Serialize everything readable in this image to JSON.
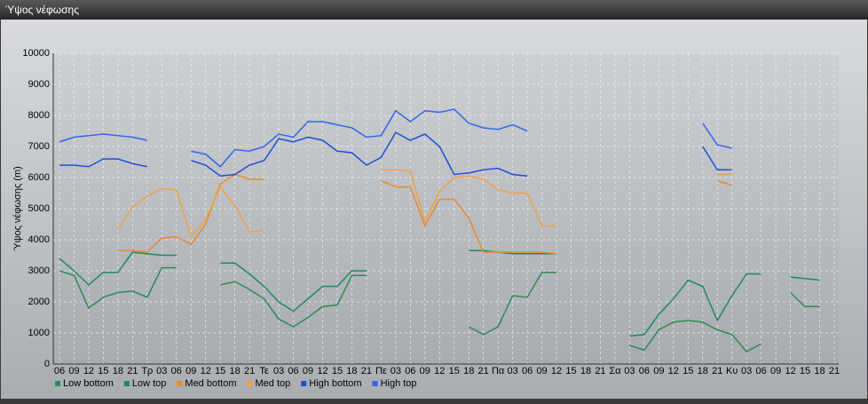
{
  "chart_data": {
    "type": "line",
    "title": "Ύψος νέφωσης",
    "y_label": "Ύψος νέφωσης (m)",
    "categories": [
      "06",
      "09",
      "12",
      "15",
      "18",
      "21",
      "Τρ",
      "03",
      "06",
      "09",
      "12",
      "15",
      "18",
      "21",
      "Τε",
      "03",
      "06",
      "09",
      "12",
      "15",
      "18",
      "21",
      "Πε",
      "03",
      "06",
      "09",
      "12",
      "15",
      "18",
      "21",
      "Πα",
      "03",
      "06",
      "09",
      "12",
      "15",
      "18",
      "21",
      "Σα",
      "03",
      "06",
      "09",
      "12",
      "15",
      "18",
      "21",
      "Κυ",
      "03",
      "06",
      "09",
      "12",
      "15",
      "18",
      "21"
    ],
    "ylim": [
      0,
      10000
    ],
    "yticks": [
      0,
      1000,
      2000,
      3000,
      4000,
      5000,
      6000,
      7000,
      8000,
      9000,
      10000
    ],
    "grid": true,
    "legend": "bottom-left",
    "series": [
      {
        "name": "Low bottom",
        "color": "#2c8c50",
        "values": [
          3000,
          2850,
          1800,
          2150,
          2300,
          2350,
          2150,
          3100,
          3100,
          null,
          null,
          2550,
          2650,
          2400,
          2100,
          1450,
          1200,
          1500,
          1850,
          1900,
          2850,
          2850,
          null,
          null,
          null,
          null,
          null,
          null,
          1200,
          950,
          1200,
          2200,
          2150,
          2950,
          2950,
          null,
          null,
          null,
          null,
          600,
          450,
          1100,
          1350,
          1400,
          1350,
          1100,
          950,
          400,
          650,
          null,
          2300,
          1850,
          1850,
          null
        ]
      },
      {
        "name": "Low top",
        "color": "#1e8a5e",
        "values": [
          3400,
          3000,
          2550,
          2950,
          2950,
          3600,
          3550,
          3500,
          3500,
          null,
          null,
          3250,
          3250,
          2900,
          2500,
          2000,
          1700,
          2100,
          2500,
          2500,
          3000,
          3000,
          null,
          null,
          null,
          null,
          null,
          null,
          3650,
          3650,
          3600,
          3550,
          3550,
          3550,
          3550,
          null,
          null,
          null,
          null,
          900,
          950,
          1600,
          2100,
          2700,
          2500,
          1400,
          2200,
          2900,
          2900,
          null,
          2800,
          2750,
          2700,
          null
        ]
      },
      {
        "name": "Med bottom",
        "color": "#e88a2a",
        "values": [
          null,
          null,
          null,
          null,
          3650,
          3650,
          3600,
          4050,
          4100,
          3850,
          4500,
          5800,
          6100,
          5950,
          5950,
          null,
          null,
          null,
          null,
          null,
          null,
          null,
          5900,
          5700,
          5700,
          4450,
          5300,
          5300,
          4700,
          3600,
          3600,
          3600,
          3600,
          3600,
          3550,
          null,
          null,
          null,
          null,
          null,
          null,
          null,
          null,
          null,
          null,
          5900,
          5750,
          null,
          null,
          null,
          null,
          null,
          null,
          null
        ]
      },
      {
        "name": "Med top",
        "color": "#f0a048",
        "values": [
          null,
          null,
          null,
          null,
          4350,
          5050,
          5400,
          5650,
          5600,
          4100,
          4650,
          5700,
          5100,
          4250,
          4300,
          null,
          null,
          null,
          null,
          null,
          null,
          null,
          6250,
          6250,
          6200,
          4600,
          5550,
          6000,
          6050,
          5950,
          5600,
          5500,
          5500,
          4450,
          4450,
          null,
          null,
          null,
          null,
          null,
          null,
          null,
          null,
          null,
          null,
          6100,
          6100,
          null,
          null,
          null,
          null,
          null,
          null,
          null
        ]
      },
      {
        "name": "High bottom",
        "color": "#1f4fd6",
        "values": [
          6400,
          6400,
          6350,
          6600,
          6600,
          6450,
          6350,
          null,
          null,
          6550,
          6400,
          6050,
          6100,
          6400,
          6550,
          7250,
          7150,
          7300,
          7200,
          6850,
          6800,
          6400,
          6650,
          7450,
          7200,
          7400,
          7000,
          6100,
          6150,
          6250,
          6300,
          6100,
          6050,
          null,
          null,
          null,
          null,
          null,
          null,
          null,
          null,
          null,
          null,
          null,
          7000,
          6250,
          6250,
          null,
          null,
          null,
          null,
          null,
          null,
          null
        ]
      },
      {
        "name": "High top",
        "color": "#3366e8",
        "values": [
          7150,
          7300,
          7350,
          7400,
          7350,
          7300,
          7200,
          null,
          null,
          6850,
          6750,
          6350,
          6900,
          6850,
          7000,
          7400,
          7300,
          7800,
          7800,
          7700,
          7600,
          7300,
          7350,
          8150,
          7800,
          8150,
          8100,
          8200,
          7750,
          7600,
          7550,
          7700,
          7500,
          null,
          null,
          null,
          null,
          null,
          null,
          null,
          null,
          null,
          null,
          null,
          7750,
          7050,
          6950,
          null,
          null,
          null,
          null,
          null,
          null,
          null
        ]
      }
    ]
  }
}
